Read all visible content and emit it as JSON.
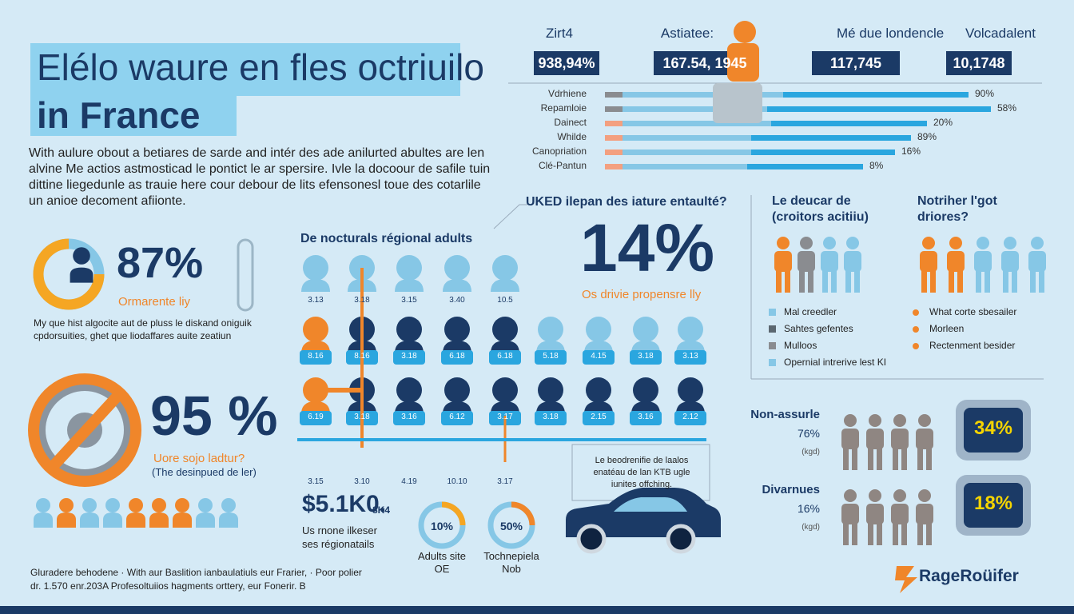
{
  "header": {
    "title_lines": [
      "Elélo waure en fles octriuilo",
      "in France"
    ]
  },
  "intro": [
    "With aulure obout a betiares de sarde and intér des ade anilurted abultes are len",
    "alvine Me actios astmosticad le pontict le ar spersire. Ivle la docoour de safile tuin",
    "dittine liegedunle as trauie here cour debour de lits efensonesl toue des cotarlile",
    "un anioe decoment afiionte."
  ],
  "top_stats": [
    {
      "label": "Zirt4",
      "value": "938,94%"
    },
    {
      "label": "Astiatee:",
      "value": "167.54, 1945"
    },
    {
      "label": "Mé due londencle",
      "value": "117,745"
    },
    {
      "label": "Volcadalent",
      "value": "10,1748"
    }
  ],
  "bars": [
    {
      "label": "Vdrhiene",
      "pct": "90%"
    },
    {
      "label": "Repamloie",
      "pct": "58%"
    },
    {
      "label": "Dainect",
      "pct": "20%"
    },
    {
      "label": "Whilde",
      "pct": "89%"
    },
    {
      "label": "Canopriation",
      "pct": "16%"
    },
    {
      "label": "Clé-Pantun",
      "pct": "8%"
    }
  ],
  "stat_87": {
    "value": "87%",
    "caption": "Ormarente liy",
    "note": [
      "My que hist algocite aut de pluss le diskand oniguik",
      "cpdorsuities, ghet que liodaffares auite zeatiun"
    ]
  },
  "stat_95": {
    "value": "95 %",
    "caption": "Uore sojo ladtur?",
    "sub": "(The desinpued de ler)"
  },
  "regional": {
    "title": "De nocturals régional adults",
    "rows": [
      [
        "3.13",
        "3.18",
        "3.15",
        "3.40",
        "10.5"
      ],
      [
        "8.16",
        "8.16",
        "3.18",
        "6.18",
        "6.18",
        "5.18",
        "4.15",
        "3.18",
        "3.13"
      ],
      [
        "6.19",
        "3.18",
        "3.16",
        "6.12",
        "3.17",
        "3.18",
        "2.15",
        "3.16",
        "2.12"
      ],
      [
        "3.15",
        "3.10",
        "4.19",
        "10.10",
        "3.17"
      ]
    ],
    "price": "$5.1K0.",
    "price_tail": "8K4",
    "price_note": [
      "Us rnone ilkeser",
      "ses régionatails"
    ],
    "donuts": [
      {
        "value": "10%",
        "label": "Adults site",
        "sub": "OE"
      },
      {
        "value": "50%",
        "label": "Tochnepiela",
        "sub": "Nob"
      }
    ]
  },
  "question": {
    "title": "UKED ilepan des iature entaulté?",
    "value": "14%",
    "caption": "Os drivie propensre lly"
  },
  "car_note": [
    "Le beodrenifie de laalos",
    "enatéau de lan KTB ugle",
    "iunites offching."
  ],
  "groups": [
    {
      "title": [
        "Le deucar de",
        "(croitors acitiiu)"
      ],
      "legend": [
        "Mal creedler",
        "Sahtes gefentes",
        "Mulloos",
        "Opernial intrerive lest KI"
      ]
    },
    {
      "title": [
        "Notriher l'got",
        "driores?"
      ],
      "legend": [
        "What corte sbesailer",
        "Morleen",
        "Rectenment besider"
      ]
    }
  ],
  "insured": [
    {
      "label": "Non-assurle",
      "value": "76%",
      "unit": "(kgd)",
      "badge": "34%"
    },
    {
      "label": "Divarnues",
      "value": "16%",
      "unit": "(kgd)",
      "badge": "18%"
    }
  ],
  "footer": [
    "Gluradere behodene · With aur Baslition ianbaulatiuls eur Frarier, · Poor polier",
    "dr. 1.570 enr.203A Profesoltuiios hagments orttery, eur Fonerir. B"
  ],
  "logo": "RageRoüifer"
}
